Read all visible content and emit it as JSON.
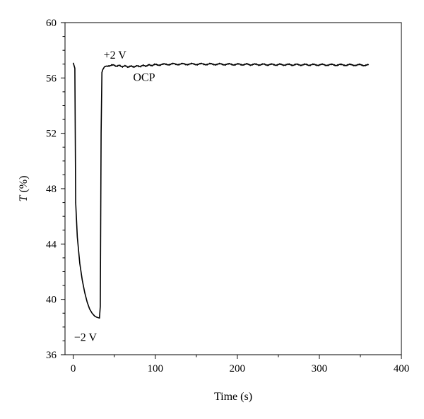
{
  "chart_data": {
    "type": "line",
    "title": "",
    "xlabel": "Time (s)",
    "ylabel_italic": "T",
    "ylabel_rest": " (%)",
    "xlim": [
      -10,
      400
    ],
    "ylim": [
      36,
      60
    ],
    "xticks": [
      0,
      100,
      200,
      300,
      400
    ],
    "yticks": [
      36,
      40,
      44,
      48,
      52,
      56,
      60
    ],
    "grid": false,
    "legend": "none",
    "line_color": "#000000",
    "series": [
      {
        "x": [
          0,
          2,
          3,
          5,
          8,
          11,
          14,
          17,
          20,
          23,
          26,
          29,
          32,
          33,
          34,
          35,
          36,
          38,
          42,
          50,
          60,
          70,
          80,
          90,
          100,
          120,
          140,
          160,
          200,
          250,
          300,
          340,
          360
        ],
        "y": [
          57.1,
          56.7,
          47.0,
          44.5,
          42.6,
          41.4,
          40.5,
          39.8,
          39.3,
          39.0,
          38.8,
          38.7,
          38.65,
          39.5,
          52.0,
          56.4,
          56.6,
          56.8,
          56.9,
          56.9,
          56.85,
          56.82,
          56.85,
          56.9,
          56.95,
          57.0,
          57.0,
          57.0,
          56.98,
          56.96,
          56.95,
          56.94,
          56.93
        ]
      }
    ],
    "annotations": [
      {
        "text": "+2 V",
        "x": 37,
        "y": 57.4
      },
      {
        "text": "OCP",
        "x": 73,
        "y": 55.8
      },
      {
        "text": "−2 V",
        "x": 1,
        "y": 37.0
      }
    ]
  }
}
